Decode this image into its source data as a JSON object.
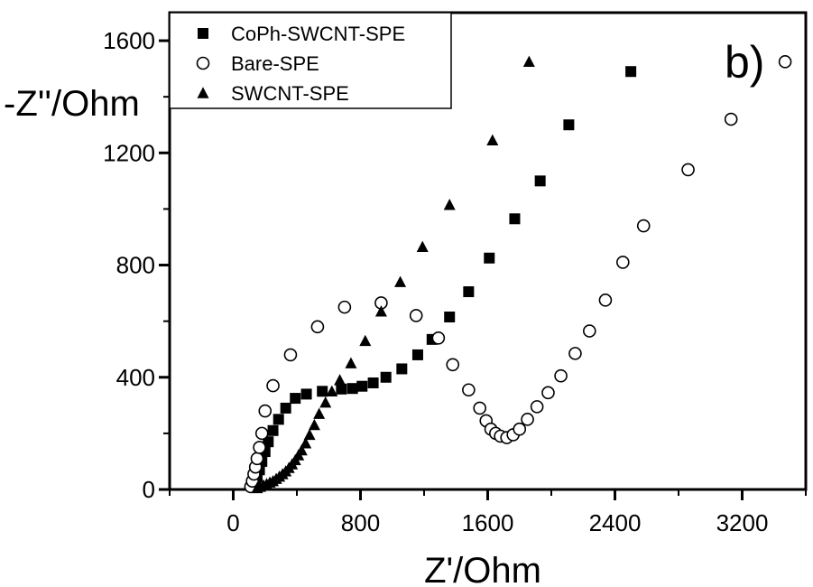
{
  "chart_data": {
    "type": "scatter",
    "panel_label": "b)",
    "xlabel": "Z'/Ohm",
    "ylabel": "-Z''/Ohm",
    "xlim": [
      -400,
      3600
    ],
    "ylim": [
      0,
      1700
    ],
    "xticks": [
      0,
      800,
      1600,
      2400,
      3200
    ],
    "yticks": [
      0,
      400,
      800,
      1200,
      1600
    ],
    "grid": false,
    "legend_position": "top-left",
    "series": [
      {
        "name": "CoPh-SWCNT-SPE",
        "marker": "square-filled",
        "color": "#000000",
        "points": [
          [
            120,
            10
          ],
          [
            135,
            25
          ],
          [
            150,
            45
          ],
          [
            165,
            70
          ],
          [
            180,
            100
          ],
          [
            200,
            135
          ],
          [
            220,
            170
          ],
          [
            250,
            210
          ],
          [
            285,
            250
          ],
          [
            330,
            290
          ],
          [
            390,
            325
          ],
          [
            460,
            340
          ],
          [
            560,
            350
          ],
          [
            680,
            358
          ],
          [
            750,
            360
          ],
          [
            810,
            368
          ],
          [
            880,
            380
          ],
          [
            960,
            400
          ],
          [
            1060,
            430
          ],
          [
            1160,
            480
          ],
          [
            1250,
            535
          ],
          [
            1360,
            615
          ],
          [
            1480,
            705
          ],
          [
            1610,
            825
          ],
          [
            1770,
            965
          ],
          [
            1930,
            1100
          ],
          [
            2110,
            1300
          ],
          [
            2500,
            1490
          ]
        ]
      },
      {
        "name": "Bare-SPE",
        "marker": "circle-open",
        "color": "#000000",
        "points": [
          [
            110,
            10
          ],
          [
            120,
            30
          ],
          [
            130,
            55
          ],
          [
            140,
            80
          ],
          [
            150,
            110
          ],
          [
            165,
            150
          ],
          [
            180,
            200
          ],
          [
            200,
            280
          ],
          [
            250,
            370
          ],
          [
            360,
            480
          ],
          [
            530,
            580
          ],
          [
            700,
            650
          ],
          [
            930,
            665
          ],
          [
            1150,
            620
          ],
          [
            1290,
            540
          ],
          [
            1380,
            445
          ],
          [
            1480,
            355
          ],
          [
            1550,
            290
          ],
          [
            1590,
            245
          ],
          [
            1620,
            215
          ],
          [
            1650,
            200
          ],
          [
            1680,
            190
          ],
          [
            1720,
            185
          ],
          [
            1760,
            195
          ],
          [
            1800,
            215
          ],
          [
            1850,
            250
          ],
          [
            1910,
            295
          ],
          [
            1980,
            345
          ],
          [
            2060,
            405
          ],
          [
            2150,
            485
          ],
          [
            2240,
            565
          ],
          [
            2340,
            675
          ],
          [
            2450,
            810
          ],
          [
            2580,
            940
          ],
          [
            2860,
            1140
          ],
          [
            3130,
            1320
          ],
          [
            3470,
            1525
          ]
        ]
      },
      {
        "name": "SWCNT-SPE",
        "marker": "triangle-filled",
        "color": "#000000",
        "points": [
          [
            150,
            5
          ],
          [
            170,
            10
          ],
          [
            190,
            15
          ],
          [
            210,
            20
          ],
          [
            230,
            25
          ],
          [
            250,
            30
          ],
          [
            270,
            38
          ],
          [
            290,
            46
          ],
          [
            310,
            55
          ],
          [
            330,
            65
          ],
          [
            350,
            77
          ],
          [
            370,
            90
          ],
          [
            390,
            105
          ],
          [
            410,
            122
          ],
          [
            430,
            140
          ],
          [
            455,
            165
          ],
          [
            480,
            195
          ],
          [
            510,
            230
          ],
          [
            540,
            270
          ],
          [
            580,
            310
          ],
          [
            620,
            350
          ],
          [
            670,
            390
          ],
          [
            740,
            450
          ],
          [
            830,
            530
          ],
          [
            930,
            635
          ],
          [
            1050,
            740
          ],
          [
            1190,
            865
          ],
          [
            1360,
            1015
          ],
          [
            1630,
            1245
          ],
          [
            1860,
            1525
          ]
        ]
      }
    ]
  }
}
